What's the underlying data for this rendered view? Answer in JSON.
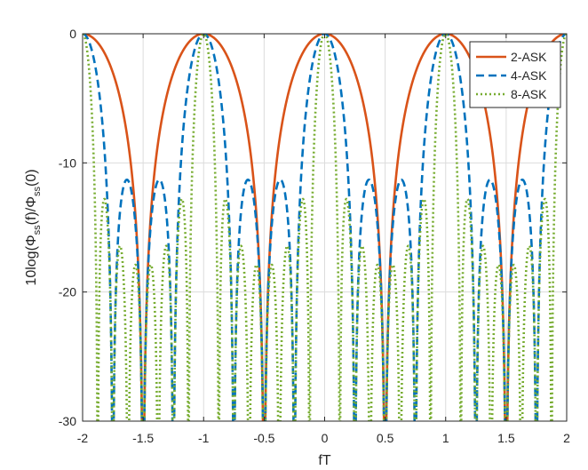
{
  "chart_data": {
    "type": "line",
    "title": "",
    "xlabel": "fT",
    "ylabel": {
      "prefix": "10log(Φ",
      "sub1": "ss",
      "mid": "(f)/Φ",
      "sub2": "ss",
      "suffix": "(0)"
    },
    "xlim": [
      -2,
      2
    ],
    "ylim": [
      -30,
      0
    ],
    "xticks": [
      -2,
      -1.5,
      -1,
      -0.5,
      0,
      0.5,
      1,
      1.5,
      2
    ],
    "xtick_labels": [
      "-2",
      "-1.5",
      "-1",
      "-0.5",
      "0",
      "0.5",
      "1",
      "1.5",
      "2"
    ],
    "yticks": [
      -30,
      -20,
      -10,
      0
    ],
    "ytick_labels": [
      "-30",
      "-20",
      "-10",
      "0"
    ],
    "grid": true,
    "legend_position": "top-right",
    "series": [
      {
        "name": "2-ASK",
        "M": 2,
        "color": "#d95319",
        "style": "solid"
      },
      {
        "name": "4-ASK",
        "M": 4,
        "color": "#0072bd",
        "style": "dashed"
      },
      {
        "name": "8-ASK",
        "M": 8,
        "color": "#77ac30",
        "style": "dotted"
      }
    ],
    "sampling": {
      "x_start": -2,
      "x_end": 2,
      "points": 4001
    }
  }
}
